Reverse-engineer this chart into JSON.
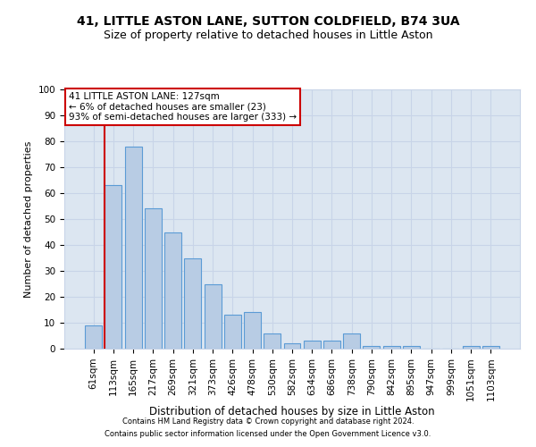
{
  "title1": "41, LITTLE ASTON LANE, SUTTON COLDFIELD, B74 3UA",
  "title2": "Size of property relative to detached houses in Little Aston",
  "xlabel": "Distribution of detached houses by size in Little Aston",
  "ylabel": "Number of detached properties",
  "categories": [
    "61sqm",
    "113sqm",
    "165sqm",
    "217sqm",
    "269sqm",
    "321sqm",
    "373sqm",
    "426sqm",
    "478sqm",
    "530sqm",
    "582sqm",
    "634sqm",
    "686sqm",
    "738sqm",
    "790sqm",
    "842sqm",
    "895sqm",
    "947sqm",
    "999sqm",
    "1051sqm",
    "1103sqm"
  ],
  "values": [
    9,
    63,
    78,
    54,
    45,
    35,
    25,
    13,
    14,
    6,
    2,
    3,
    3,
    6,
    1,
    1,
    1,
    0,
    0,
    1,
    1
  ],
  "bar_color": "#b8cce4",
  "bar_edge_color": "#5b9bd5",
  "grid_color": "#c8d4e8",
  "background_color": "#dce6f1",
  "vline_color": "#cc0000",
  "vline_pos": 0.575,
  "annotation_text": "41 LITTLE ASTON LANE: 127sqm\n← 6% of detached houses are smaller (23)\n93% of semi-detached houses are larger (333) →",
  "annotation_box_color": "#ffffff",
  "annotation_box_edge": "#cc0000",
  "footnote1": "Contains HM Land Registry data © Crown copyright and database right 2024.",
  "footnote2": "Contains public sector information licensed under the Open Government Licence v3.0.",
  "ylim": [
    0,
    100
  ],
  "yticks": [
    0,
    10,
    20,
    30,
    40,
    50,
    60,
    70,
    80,
    90,
    100
  ],
  "title1_fontsize": 10,
  "title2_fontsize": 9,
  "xlabel_fontsize": 8.5,
  "ylabel_fontsize": 8,
  "tick_fontsize": 7.5,
  "annot_fontsize": 7.5,
  "footnote_fontsize": 6
}
